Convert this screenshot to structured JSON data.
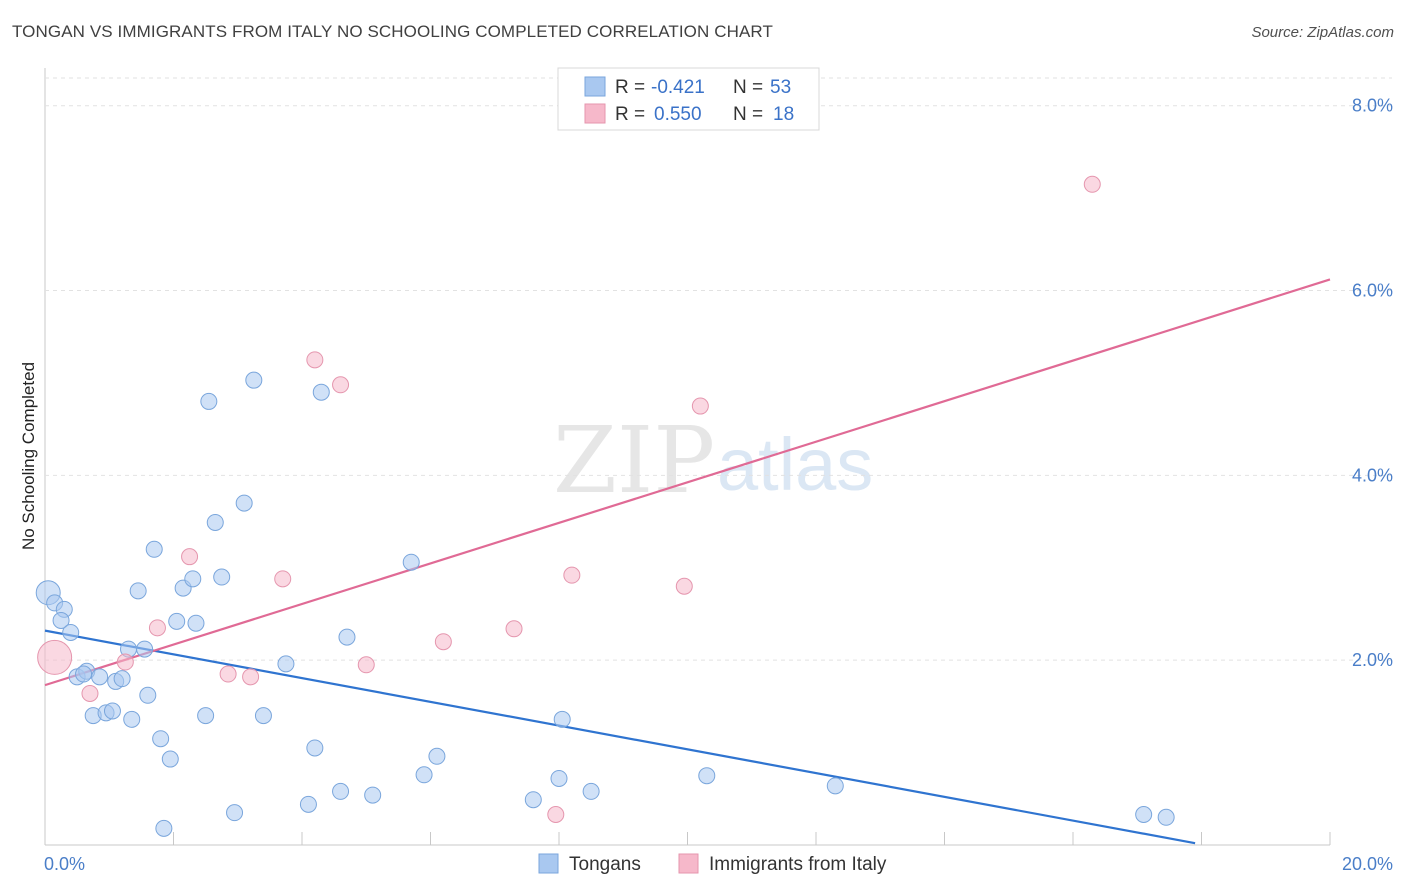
{
  "header": {
    "title": "TONGAN VS IMMIGRANTS FROM ITALY NO SCHOOLING COMPLETED CORRELATION CHART",
    "source": "Source: ZipAtlas.com"
  },
  "watermark": {
    "zip": "ZIP",
    "atlas": "atlas"
  },
  "legend_top": {
    "rows": [
      {
        "r_label": "R = ",
        "r_value": "-0.421",
        "n_label": "N = ",
        "n_value": "53",
        "color": "#a9c8f0"
      },
      {
        "r_label": "R = ",
        "r_value": "0.550",
        "n_label": "N = ",
        "n_value": "18",
        "color": "#f6b8ca"
      }
    ]
  },
  "legend_bottom": {
    "items": [
      {
        "label": "Tongans",
        "color": "#a9c8f0"
      },
      {
        "label": "Immigrants from Italy",
        "color": "#f6b8ca"
      }
    ]
  },
  "colors": {
    "blue_fill": "#a9c8f0",
    "blue_stroke": "#7aa6dc",
    "blue_line": "#2f74d0",
    "pink_fill": "#f6b8ca",
    "pink_stroke": "#e596ae",
    "pink_line": "#e06a95",
    "grid": "#e2e2e2",
    "tick_text": "#4a7ec8"
  },
  "chart_data": {
    "type": "scatter",
    "title": "TONGAN VS IMMIGRANTS FROM ITALY NO SCHOOLING COMPLETED CORRELATION CHART",
    "xlabel": "",
    "ylabel": "No Schooling Completed",
    "xlim": [
      0,
      20
    ],
    "ylim": [
      0,
      8.3
    ],
    "x_ticks": [
      0,
      20
    ],
    "x_tick_labels": [
      "0.0%",
      "20.0%"
    ],
    "y_ticks": [
      2,
      4,
      6,
      8
    ],
    "y_tick_labels": [
      "2.0%",
      "4.0%",
      "6.0%",
      "8.0%"
    ],
    "grid": true,
    "legend_position": "top-center",
    "series": [
      {
        "name": "Tongans",
        "r": -0.421,
        "n": 53,
        "trend": {
          "x": [
            0,
            17.9
          ],
          "y": [
            2.32,
            0.02
          ]
        },
        "points": [
          {
            "x": 0.05,
            "y": 2.73,
            "big": true
          },
          {
            "x": 0.15,
            "y": 2.62
          },
          {
            "x": 0.3,
            "y": 2.55
          },
          {
            "x": 0.25,
            "y": 2.43
          },
          {
            "x": 0.4,
            "y": 2.3
          },
          {
            "x": 0.5,
            "y": 1.82
          },
          {
            "x": 0.65,
            "y": 1.88
          },
          {
            "x": 0.6,
            "y": 1.85
          },
          {
            "x": 0.75,
            "y": 1.4
          },
          {
            "x": 0.85,
            "y": 1.82
          },
          {
            "x": 0.95,
            "y": 1.43
          },
          {
            "x": 1.05,
            "y": 1.45
          },
          {
            "x": 1.1,
            "y": 1.77
          },
          {
            "x": 1.2,
            "y": 1.8
          },
          {
            "x": 1.3,
            "y": 2.12
          },
          {
            "x": 1.35,
            "y": 1.36
          },
          {
            "x": 1.45,
            "y": 2.75
          },
          {
            "x": 1.55,
            "y": 2.12
          },
          {
            "x": 1.6,
            "y": 1.62
          },
          {
            "x": 1.7,
            "y": 3.2
          },
          {
            "x": 1.8,
            "y": 1.15
          },
          {
            "x": 1.85,
            "y": 0.18
          },
          {
            "x": 1.95,
            "y": 0.93
          },
          {
            "x": 2.05,
            "y": 2.42
          },
          {
            "x": 2.15,
            "y": 2.78
          },
          {
            "x": 2.3,
            "y": 2.88
          },
          {
            "x": 2.35,
            "y": 2.4
          },
          {
            "x": 2.5,
            "y": 1.4
          },
          {
            "x": 2.55,
            "y": 4.8
          },
          {
            "x": 2.65,
            "y": 3.49
          },
          {
            "x": 2.75,
            "y": 2.9
          },
          {
            "x": 2.95,
            "y": 0.35
          },
          {
            "x": 3.1,
            "y": 3.7
          },
          {
            "x": 3.25,
            "y": 5.03
          },
          {
            "x": 3.4,
            "y": 1.4
          },
          {
            "x": 3.75,
            "y": 1.96
          },
          {
            "x": 4.1,
            "y": 0.44
          },
          {
            "x": 4.2,
            "y": 1.05
          },
          {
            "x": 4.3,
            "y": 4.9
          },
          {
            "x": 4.6,
            "y": 0.58
          },
          {
            "x": 4.7,
            "y": 2.25
          },
          {
            "x": 5.1,
            "y": 0.54
          },
          {
            "x": 5.7,
            "y": 3.06
          },
          {
            "x": 5.9,
            "y": 0.76
          },
          {
            "x": 6.1,
            "y": 0.96
          },
          {
            "x": 7.6,
            "y": 0.49
          },
          {
            "x": 8.0,
            "y": 0.72
          },
          {
            "x": 8.05,
            "y": 1.36
          },
          {
            "x": 8.5,
            "y": 0.58
          },
          {
            "x": 10.3,
            "y": 0.75
          },
          {
            "x": 12.3,
            "y": 0.64
          },
          {
            "x": 17.1,
            "y": 0.33
          },
          {
            "x": 17.45,
            "y": 0.3
          }
        ]
      },
      {
        "name": "Immigrants from Italy",
        "r": 0.55,
        "n": 18,
        "trend": {
          "x": [
            0,
            20
          ],
          "y": [
            1.73,
            6.12
          ]
        },
        "points": [
          {
            "x": 0.15,
            "y": 2.03,
            "big": true
          },
          {
            "x": 0.7,
            "y": 1.64
          },
          {
            "x": 1.25,
            "y": 1.98
          },
          {
            "x": 1.75,
            "y": 2.35
          },
          {
            "x": 2.25,
            "y": 3.12
          },
          {
            "x": 2.85,
            "y": 1.85
          },
          {
            "x": 3.2,
            "y": 1.82
          },
          {
            "x": 3.7,
            "y": 2.88
          },
          {
            "x": 4.2,
            "y": 5.25
          },
          {
            "x": 4.6,
            "y": 4.98
          },
          {
            "x": 5.0,
            "y": 1.95
          },
          {
            "x": 6.2,
            "y": 2.2
          },
          {
            "x": 7.3,
            "y": 2.34
          },
          {
            "x": 7.95,
            "y": 0.33
          },
          {
            "x": 8.2,
            "y": 2.92
          },
          {
            "x": 9.95,
            "y": 2.8
          },
          {
            "x": 10.2,
            "y": 4.75
          },
          {
            "x": 16.3,
            "y": 7.15
          }
        ]
      }
    ]
  }
}
